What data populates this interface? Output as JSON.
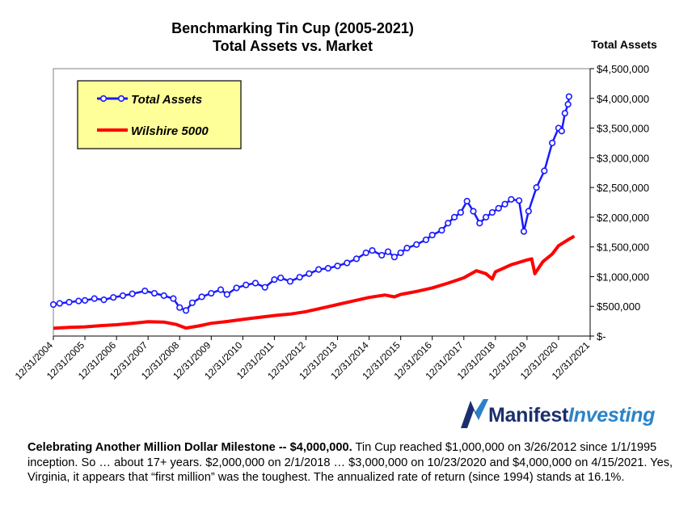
{
  "chart_data": {
    "type": "line",
    "title": [
      "Benchmarking Tin Cup (2005-2021)",
      "Total Assets vs. Market"
    ],
    "y_axis_title": "Total Assets",
    "y_axis_side": "right",
    "ylim": [
      0,
      4500000
    ],
    "y_ticks": [
      0,
      500000,
      1000000,
      1500000,
      2000000,
      2500000,
      3000000,
      3500000,
      4000000,
      4500000
    ],
    "y_tick_labels": [
      "$-",
      "$500,000",
      "$1,000,000",
      "$1,500,000",
      "$2,000,000",
      "$2,500,000",
      "$3,000,000",
      "$3,500,000",
      "$4,000,000",
      "$4,500,000"
    ],
    "xlim": [
      2005,
      2022
    ],
    "x_ticks": [
      2005,
      2006,
      2007,
      2008,
      2009,
      2010,
      2011,
      2012,
      2013,
      2014,
      2015,
      2016,
      2017,
      2018,
      2019,
      2020,
      2021,
      2022
    ],
    "x_tick_labels": [
      "12/31/2004",
      "12/31/2005",
      "12/31/2006",
      "12/31/2007",
      "12/31/2008",
      "12/31/2009",
      "12/31/2010",
      "12/31/2011",
      "12/31/2012",
      "12/31/2013",
      "12/31/2014",
      "12/31/2015",
      "12/31/2016",
      "12/31/2017",
      "12/31/2018",
      "12/31/2019",
      "12/31/2020",
      "12/31/2021"
    ],
    "grid": "none",
    "legend_placement": "top-left",
    "series": [
      {
        "name": "Total Assets",
        "color": "#1a1aff",
        "marker": "open-circle",
        "points": [
          [
            2005.0,
            530000
          ],
          [
            2005.2,
            550000
          ],
          [
            2005.5,
            570000
          ],
          [
            2005.8,
            590000
          ],
          [
            2006.0,
            600000
          ],
          [
            2006.3,
            630000
          ],
          [
            2006.6,
            610000
          ],
          [
            2006.9,
            650000
          ],
          [
            2007.2,
            680000
          ],
          [
            2007.5,
            710000
          ],
          [
            2007.9,
            760000
          ],
          [
            2008.2,
            720000
          ],
          [
            2008.5,
            680000
          ],
          [
            2008.8,
            630000
          ],
          [
            2009.0,
            480000
          ],
          [
            2009.2,
            430000
          ],
          [
            2009.4,
            560000
          ],
          [
            2009.7,
            660000
          ],
          [
            2010.0,
            720000
          ],
          [
            2010.3,
            780000
          ],
          [
            2010.5,
            700000
          ],
          [
            2010.8,
            810000
          ],
          [
            2011.1,
            860000
          ],
          [
            2011.4,
            890000
          ],
          [
            2011.7,
            820000
          ],
          [
            2012.0,
            950000
          ],
          [
            2012.2,
            980000
          ],
          [
            2012.5,
            920000
          ],
          [
            2012.8,
            990000
          ],
          [
            2013.1,
            1050000
          ],
          [
            2013.4,
            1120000
          ],
          [
            2013.7,
            1140000
          ],
          [
            2014.0,
            1180000
          ],
          [
            2014.3,
            1230000
          ],
          [
            2014.6,
            1300000
          ],
          [
            2014.9,
            1400000
          ],
          [
            2015.1,
            1440000
          ],
          [
            2015.4,
            1360000
          ],
          [
            2015.6,
            1420000
          ],
          [
            2015.8,
            1330000
          ],
          [
            2016.0,
            1400000
          ],
          [
            2016.2,
            1480000
          ],
          [
            2016.5,
            1540000
          ],
          [
            2016.8,
            1620000
          ],
          [
            2017.0,
            1700000
          ],
          [
            2017.3,
            1780000
          ],
          [
            2017.5,
            1900000
          ],
          [
            2017.7,
            2000000
          ],
          [
            2017.9,
            2080000
          ],
          [
            2018.1,
            2270000
          ],
          [
            2018.3,
            2100000
          ],
          [
            2018.5,
            1900000
          ],
          [
            2018.7,
            2000000
          ],
          [
            2018.9,
            2080000
          ],
          [
            2019.1,
            2150000
          ],
          [
            2019.3,
            2220000
          ],
          [
            2019.5,
            2300000
          ],
          [
            2019.75,
            2280000
          ],
          [
            2019.9,
            1760000
          ],
          [
            2020.05,
            2100000
          ],
          [
            2020.3,
            2500000
          ],
          [
            2020.55,
            2780000
          ],
          [
            2020.8,
            3250000
          ],
          [
            2021.0,
            3500000
          ],
          [
            2021.1,
            3450000
          ],
          [
            2021.2,
            3750000
          ],
          [
            2021.3,
            3900000
          ],
          [
            2021.33,
            4030000
          ]
        ]
      },
      {
        "name": "Wilshire 5000",
        "color": "#ff0000",
        "marker": "none",
        "points": [
          [
            2005.0,
            130000
          ],
          [
            2005.5,
            145000
          ],
          [
            2006.0,
            155000
          ],
          [
            2006.5,
            175000
          ],
          [
            2007.0,
            190000
          ],
          [
            2007.5,
            215000
          ],
          [
            2008.0,
            240000
          ],
          [
            2008.5,
            235000
          ],
          [
            2008.9,
            195000
          ],
          [
            2009.2,
            135000
          ],
          [
            2009.6,
            170000
          ],
          [
            2010.0,
            215000
          ],
          [
            2010.5,
            245000
          ],
          [
            2011.0,
            280000
          ],
          [
            2011.3,
            300000
          ],
          [
            2011.6,
            320000
          ],
          [
            2012.0,
            345000
          ],
          [
            2012.5,
            370000
          ],
          [
            2013.0,
            410000
          ],
          [
            2013.5,
            470000
          ],
          [
            2014.0,
            530000
          ],
          [
            2014.5,
            590000
          ],
          [
            2015.0,
            650000
          ],
          [
            2015.5,
            690000
          ],
          [
            2015.8,
            660000
          ],
          [
            2016.0,
            700000
          ],
          [
            2016.5,
            750000
          ],
          [
            2017.0,
            810000
          ],
          [
            2017.5,
            890000
          ],
          [
            2018.0,
            980000
          ],
          [
            2018.4,
            1100000
          ],
          [
            2018.7,
            1050000
          ],
          [
            2018.9,
            960000
          ],
          [
            2019.0,
            1080000
          ],
          [
            2019.5,
            1200000
          ],
          [
            2020.0,
            1280000
          ],
          [
            2020.15,
            1300000
          ],
          [
            2020.25,
            1050000
          ],
          [
            2020.5,
            1250000
          ],
          [
            2020.8,
            1380000
          ],
          [
            2021.0,
            1520000
          ],
          [
            2021.3,
            1620000
          ],
          [
            2021.5,
            1680000
          ]
        ]
      }
    ]
  },
  "brand": {
    "part1": "Manifest",
    "part2": "Investing"
  },
  "caption": {
    "lead": "Celebrating Another Million Dollar Milestone -- $4,000,000.",
    "body": "   Tin Cup reached $1,000,000 on 3/26/2012 since 1/1/1995 inception.  So … about 17+ years.  $2,000,000 on 2/1/2018 … $3,000,000 on 10/23/2020 and $4,000,000 on 4/15/2021.  Yes, Virginia, it appears that “first million” was the toughest.  The annualized rate of return (since 1994) stands at 16.1%."
  }
}
